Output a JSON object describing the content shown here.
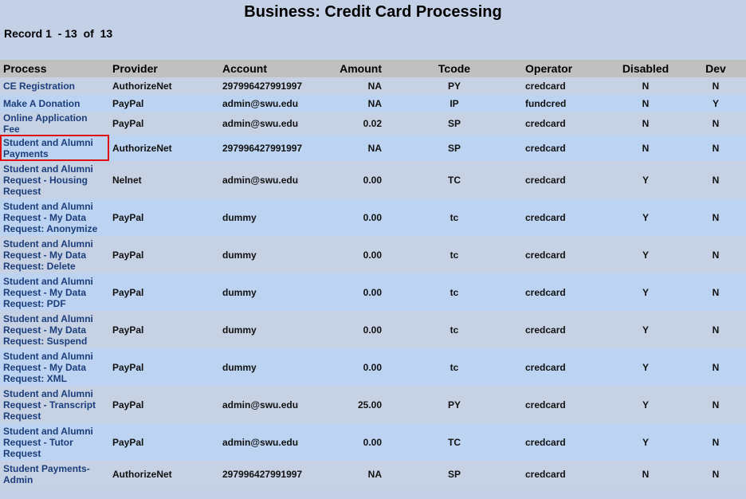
{
  "header": {
    "title": "Business: Credit Card Processing",
    "record": "Record 1  - 13  of  13"
  },
  "table": {
    "columns": [
      "Process",
      "Provider",
      "Account",
      "Amount",
      "Tcode",
      "Operator",
      "Disabled",
      "Dev"
    ],
    "rows": [
      [
        "CE Registration",
        "AuthorizeNet",
        "297996427991997",
        "NA",
        "PY",
        "credcard",
        "N",
        "N"
      ],
      [
        "Make A Donation",
        "PayPal",
        "admin@swu.edu",
        "NA",
        "IP",
        "fundcred",
        "N",
        "Y"
      ],
      [
        "Online Application Fee",
        "PayPal",
        "admin@swu.edu",
        "0.02",
        "SP",
        "credcard",
        "N",
        "N"
      ],
      [
        "Student and Alumni Payments",
        "AuthorizeNet",
        "297996427991997",
        "NA",
        "SP",
        "credcard",
        "N",
        "N"
      ],
      [
        "Student and Alumni Request - Housing Request",
        "Nelnet",
        "admin@swu.edu",
        "0.00",
        "TC",
        "credcard",
        "Y",
        "N"
      ],
      [
        "Student and Alumni Request - My Data Request: Anonymize",
        "PayPal",
        "dummy",
        "0.00",
        "tc",
        "credcard",
        "Y",
        "N"
      ],
      [
        "Student and Alumni Request - My Data Request: Delete",
        "PayPal",
        "dummy",
        "0.00",
        "tc",
        "credcard",
        "Y",
        "N"
      ],
      [
        "Student and Alumni Request - My Data Request: PDF",
        "PayPal",
        "dummy",
        "0.00",
        "tc",
        "credcard",
        "Y",
        "N"
      ],
      [
        "Student and Alumni Request - My Data Request: Suspend",
        "PayPal",
        "dummy",
        "0.00",
        "tc",
        "credcard",
        "Y",
        "N"
      ],
      [
        "Student and Alumni Request - My Data Request: XML",
        "PayPal",
        "dummy",
        "0.00",
        "tc",
        "credcard",
        "Y",
        "N"
      ],
      [
        "Student and Alumni Request - Transcript Request",
        "PayPal",
        "admin@swu.edu",
        "25.00",
        "PY",
        "credcard",
        "Y",
        "N"
      ],
      [
        "Student and Alumni Request - Tutor Request",
        "PayPal",
        "admin@swu.edu",
        "0.00",
        "TC",
        "credcard",
        "Y",
        "N"
      ],
      [
        "Student Payments-Admin",
        "AuthorizeNet",
        "297996427991997",
        "NA",
        "SP",
        "credcard",
        "N",
        "N"
      ]
    ]
  }
}
